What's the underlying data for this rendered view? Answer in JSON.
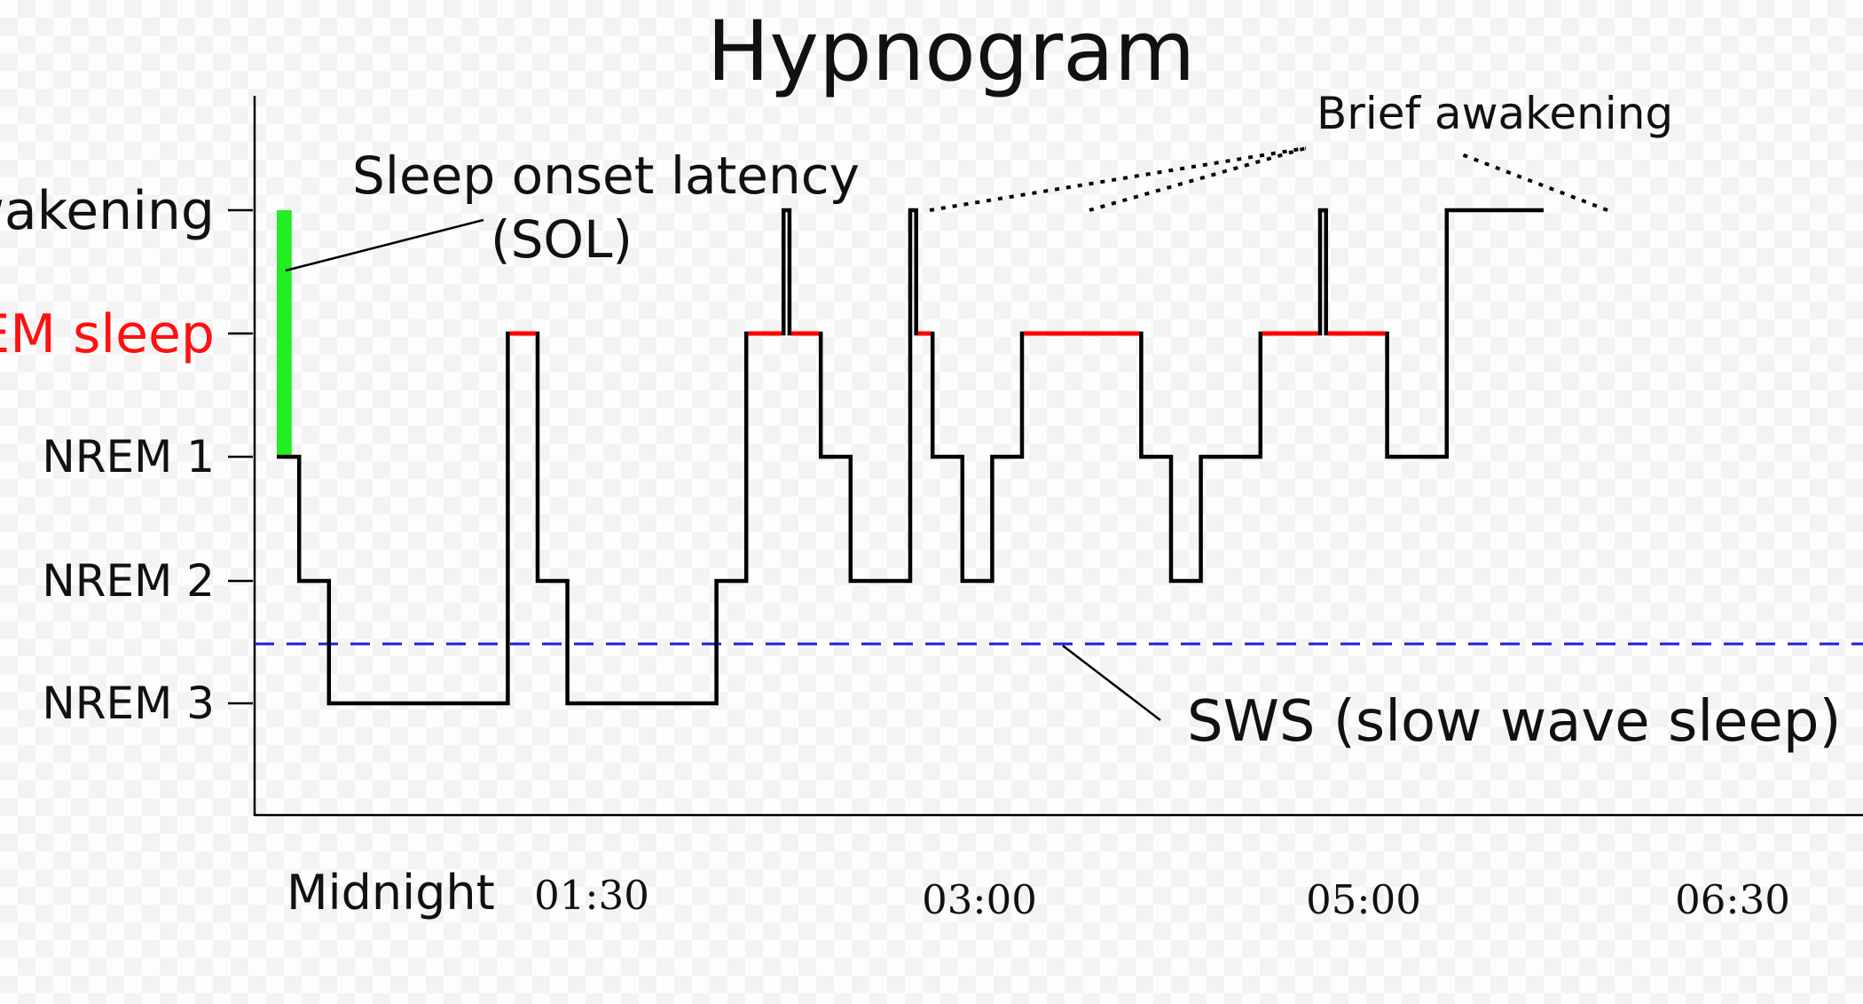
{
  "chart_data": {
    "type": "line",
    "title": "Hypnogram",
    "levels": [
      "Awakening",
      "REM sleep",
      "NREM 1",
      "NREM 2",
      "NREM 3"
    ],
    "x_ticks": [
      "Midnight",
      "01:30",
      "03:00",
      "05:00",
      "06:30"
    ],
    "series": [
      {
        "segments": [
          {
            "start": 0.0,
            "stage": "NREM 1"
          },
          {
            "start": 0.15,
            "stage": "NREM 2"
          },
          {
            "start": 0.35,
            "stage": "NREM 3"
          },
          {
            "start": 1.55,
            "stage": "REM sleep"
          },
          {
            "start": 1.75,
            "stage": "NREM 2"
          },
          {
            "start": 1.95,
            "stage": "NREM 3"
          },
          {
            "start": 2.95,
            "stage": "NREM 2"
          },
          {
            "start": 3.15,
            "stage": "REM sleep"
          },
          {
            "start": 3.4,
            "stage": "Awakening"
          },
          {
            "start": 3.44,
            "stage": "REM sleep"
          },
          {
            "start": 3.65,
            "stage": "NREM 1"
          },
          {
            "start": 3.85,
            "stage": "NREM 2"
          },
          {
            "start": 4.25,
            "stage": "Awakening"
          },
          {
            "start": 4.29,
            "stage": "REM sleep"
          },
          {
            "start": 4.4,
            "stage": "NREM 1"
          },
          {
            "start": 4.6,
            "stage": "NREM 2"
          },
          {
            "start": 4.8,
            "stage": "NREM 1"
          },
          {
            "start": 5.0,
            "stage": "REM sleep"
          },
          {
            "start": 5.8,
            "stage": "NREM 1"
          },
          {
            "start": 6.0,
            "stage": "NREM 2"
          },
          {
            "start": 6.2,
            "stage": "NREM 1"
          },
          {
            "start": 6.6,
            "stage": "REM sleep"
          },
          {
            "start": 7.0,
            "stage": "Awakening"
          },
          {
            "start": 7.04,
            "stage": "REM sleep"
          },
          {
            "start": 7.45,
            "stage": "NREM 1"
          },
          {
            "start": 7.85,
            "stage": "Awakening"
          }
        ],
        "end": 8.5
      }
    ],
    "sleep_onset_latency": {
      "start": 0.0,
      "end": 0.1
    },
    "sws_threshold": "NREM 3",
    "annotations": {
      "sol_line1": "Sleep onset latency",
      "sol_line2": "(SOL)",
      "brief_awakening": "Brief awakening",
      "sws": "SWS (slow wave sleep) level"
    },
    "colors": {
      "line": "#000000",
      "rem": "#ff0000",
      "sol": "#22ee22",
      "sws": "#1f1fd6",
      "rem_label": "#ff1010"
    },
    "grid": false
  }
}
